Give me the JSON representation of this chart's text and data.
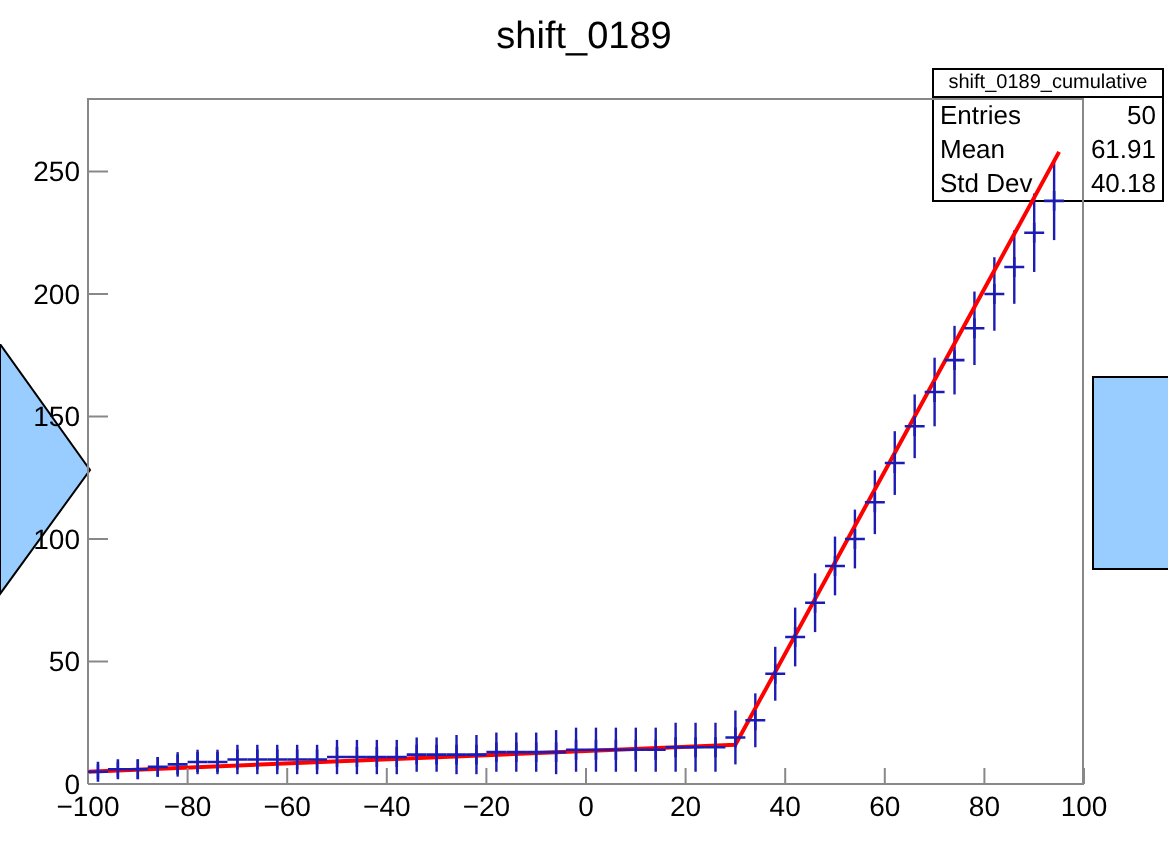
{
  "chart_data": {
    "type": "scatter",
    "title": "shift_0189",
    "xlim": [
      -100,
      100
    ],
    "xticks": [
      -100,
      -80,
      -60,
      -40,
      -20,
      0,
      20,
      40,
      60,
      80,
      100
    ],
    "ylim": [
      0,
      280
    ],
    "yticks": [
      0,
      50,
      100,
      150,
      200,
      250
    ],
    "x": [
      -98,
      -94,
      -90,
      -86,
      -82,
      -78,
      -74,
      -70,
      -66,
      -62,
      -58,
      -54,
      -50,
      -46,
      -42,
      -38,
      -34,
      -30,
      -26,
      -22,
      -18,
      -14,
      -10,
      -6,
      -2,
      2,
      6,
      10,
      14,
      18,
      22,
      26,
      30,
      34,
      38,
      42,
      46,
      50,
      54,
      58,
      62,
      66,
      70,
      74,
      78,
      82,
      86,
      90,
      94
    ],
    "grid": false,
    "legend": false,
    "series": [
      {
        "color": "#1c1cb4",
        "marker": "cross",
        "values": [
          5,
          6,
          6,
          7,
          8,
          9,
          9,
          10,
          10,
          10,
          10,
          10,
          11,
          11,
          11,
          11,
          12,
          12,
          12,
          12,
          13,
          13,
          13,
          13,
          14,
          14,
          14,
          14,
          14,
          15,
          15,
          15,
          19,
          26,
          45,
          60,
          74,
          89,
          100,
          115,
          131,
          146,
          160,
          173,
          186,
          200,
          211,
          225,
          238
        ],
        "errors": [
          3,
          3,
          4,
          4,
          5,
          5,
          5,
          6,
          6,
          6,
          6,
          6,
          7,
          7,
          7,
          7,
          7,
          7,
          8,
          8,
          8,
          8,
          8,
          9,
          9,
          9,
          9,
          9,
          9,
          10,
          10,
          10,
          11,
          11,
          11,
          12,
          12,
          12,
          12,
          13,
          13,
          13,
          14,
          14,
          15,
          15,
          15,
          16,
          16
        ]
      },
      {
        "type": "line",
        "color": "#ff0000",
        "marker": "none",
        "x": [
          -100,
          30,
          95
        ],
        "values": [
          5,
          16,
          258
        ]
      }
    ],
    "annotations": [
      "shift_0189_cumulative",
      "Entries",
      "50",
      "Mean",
      "61.91",
      "Std Dev",
      "40.18"
    ]
  }
}
